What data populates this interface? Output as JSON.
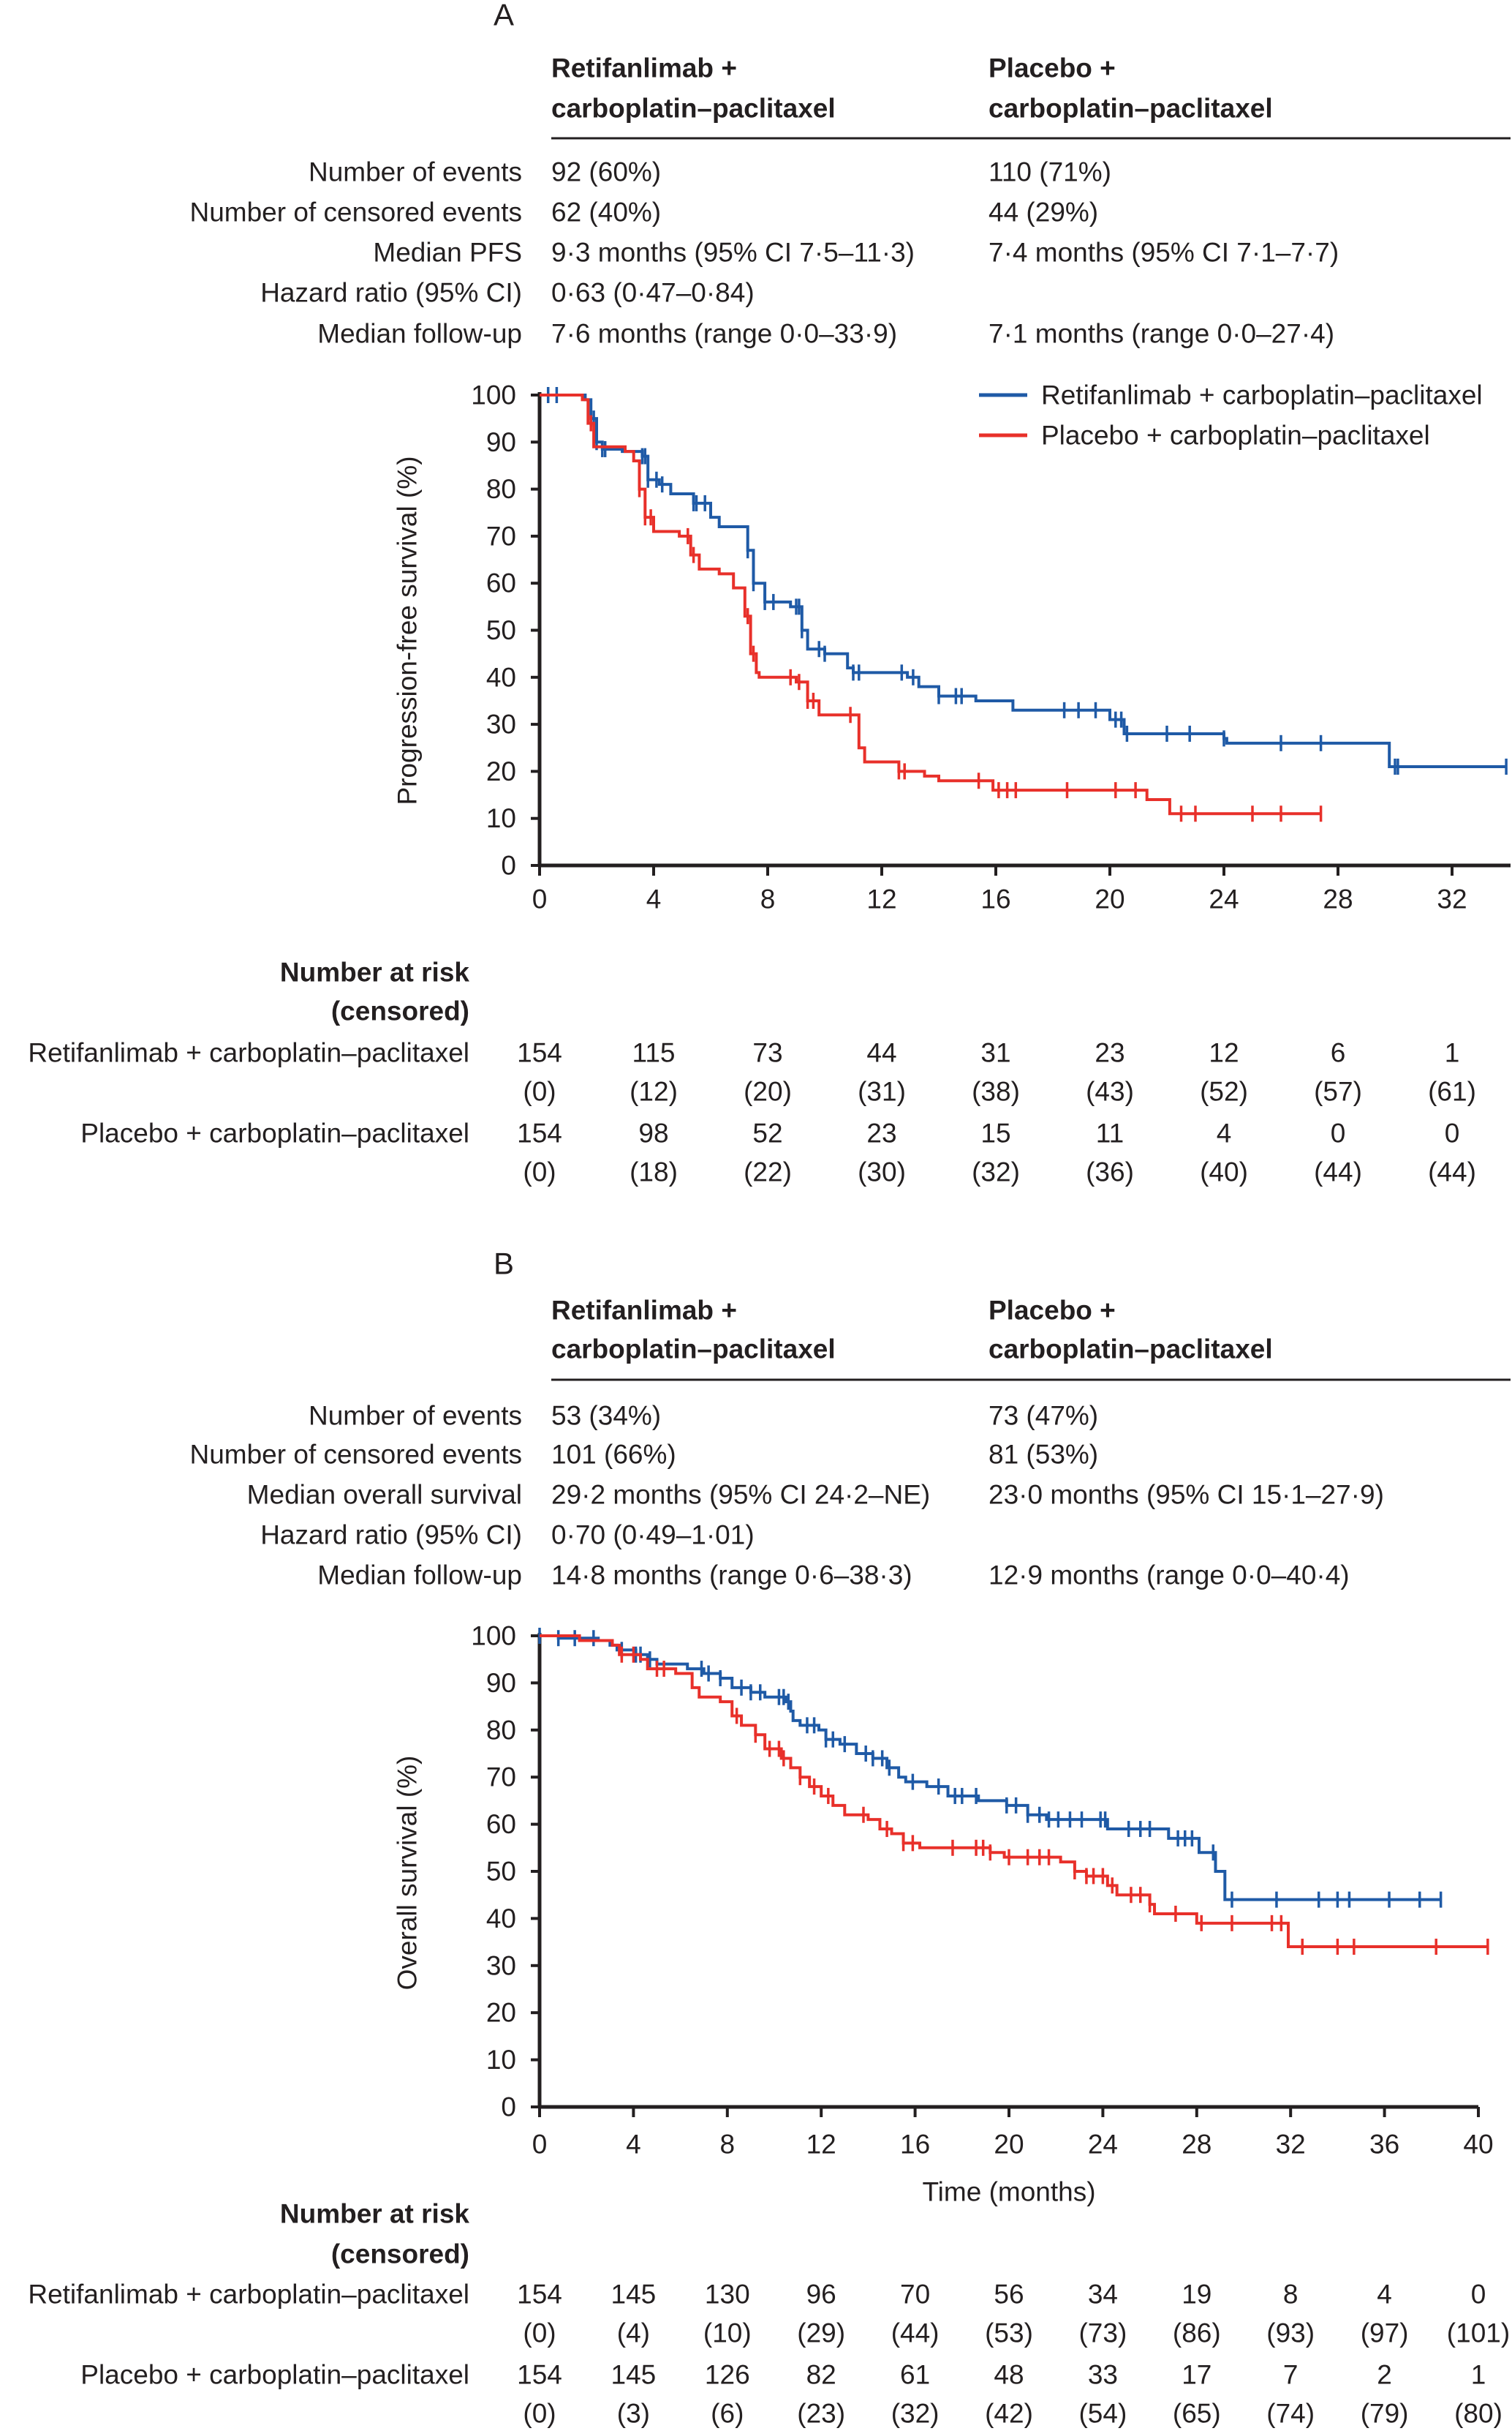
{
  "panels": [
    {
      "letter": "A",
      "header_lines": [
        [
          "Retifanlimab +",
          "carboplatin–paclitaxel"
        ],
        [
          "Placebo +",
          "carboplatin–paclitaxel"
        ]
      ],
      "stats": [
        {
          "label": "Number of events",
          "arm1": "92 (60%)",
          "arm2": "110 (71%)"
        },
        {
          "label": "Number of censored events",
          "arm1": "62 (40%)",
          "arm2": " 44 (29%)"
        },
        {
          "label": "Median PFS",
          "arm1": "9·3 months (95% CI 7·5–11·3)",
          "arm2": "7·4 months (95% CI 7·1–7·7)"
        },
        {
          "label": "Hazard ratio (95% CI)",
          "arm1": "0·63 (0·47–0·84)",
          "arm2": ""
        },
        {
          "label": "Median follow-up",
          "arm1": "7·6 months (range 0·0–33·9)",
          "arm2": "7·1 months (range 0·0–27·4)"
        }
      ],
      "risk": {
        "title": [
          "Number at risk",
          "(censored)"
        ],
        "times": [
          0,
          4,
          8,
          12,
          16,
          20,
          24,
          28,
          32
        ],
        "rows": [
          {
            "label": "Retifanlimab + carboplatin–paclitaxel",
            "at_risk": [
              "154",
              "115",
              "73",
              "44",
              "31",
              "23",
              "12",
              "6",
              "1"
            ],
            "censored": [
              "(0)",
              "(12)",
              "(20)",
              "(31)",
              "(38)",
              "(43)",
              "(52)",
              "(57)",
              "(61)"
            ]
          },
          {
            "label": "Placebo + carboplatin–paclitaxel",
            "at_risk": [
              "154",
              "98",
              "52",
              "23",
              "15",
              "11",
              "4",
              "0",
              "0"
            ],
            "censored": [
              "(0)",
              "(18)",
              "(22)",
              "(30)",
              "(32)",
              "(36)",
              "(40)",
              "(44)",
              "(44)"
            ]
          }
        ]
      }
    },
    {
      "letter": "B",
      "header_lines": [
        [
          "Retifanlimab +",
          "carboplatin–paclitaxel"
        ],
        [
          "Placebo +",
          "carboplatin–paclitaxel"
        ]
      ],
      "stats": [
        {
          "label": "Number of events",
          "arm1": " 53 (34%)",
          "arm2": "73 (47%)"
        },
        {
          "label": "Number of censored events",
          "arm1": "101 (66%)",
          "arm2": "81 (53%)"
        },
        {
          "label": "Median overall survival",
          "arm1": "29·2 months (95% CI 24·2–NE)",
          "arm2": "23·0 months (95% CI 15·1–27·9)"
        },
        {
          "label": "Hazard ratio (95% CI)",
          "arm1": " 0·70 (0·49–1·01)",
          "arm2": ""
        },
        {
          "label": "Median follow-up",
          "arm1": "14·8 months (range 0·6–38·3)",
          "arm2": "12·9 months (range 0·0–40·4)"
        }
      ],
      "risk": {
        "title": [
          "Number at risk",
          "(censored)"
        ],
        "times": [
          0,
          4,
          8,
          12,
          16,
          20,
          24,
          28,
          32,
          36,
          40
        ],
        "rows": [
          {
            "label": "Retifanlimab + carboplatin–paclitaxel",
            "at_risk": [
              "154",
              "145",
              "130",
              "96",
              "70",
              "56",
              "34",
              "19",
              "8",
              "4",
              "0"
            ],
            "censored": [
              "(0)",
              "(4)",
              "(10)",
              "(29)",
              "(44)",
              "(53)",
              "(73)",
              "(86)",
              "(93)",
              "(97)",
              "(101)"
            ]
          },
          {
            "label": "Placebo + carboplatin–paclitaxel",
            "at_risk": [
              "154",
              "145",
              "126",
              "82",
              "61",
              "48",
              "33",
              "17",
              "7",
              "2",
              "1"
            ],
            "censored": [
              "(0)",
              "(3)",
              "(6)",
              "(23)",
              "(32)",
              "(42)",
              "(54)",
              "(65)",
              "(74)",
              "(79)",
              "(80)"
            ]
          }
        ]
      }
    }
  ],
  "chart_data": [
    {
      "type": "line",
      "ylabel": "Progression-free survival (%)",
      "xlabel": "",
      "xlim": [
        0,
        34
      ],
      "ylim": [
        0,
        100
      ],
      "xticks": [
        0,
        4,
        8,
        12,
        16,
        20,
        24,
        28,
        32
      ],
      "yticks": [
        0,
        10,
        20,
        30,
        40,
        50,
        60,
        70,
        80,
        90,
        100
      ],
      "legend": "top-right",
      "series": [
        {
          "name": "Retifanlimab + carboplatin–paclitaxel",
          "color": "#1f5aa6",
          "steps": [
            [
              0,
              100
            ],
            [
              1.6,
              99
            ],
            [
              1.8,
              95
            ],
            [
              2.0,
              90
            ],
            [
              2.2,
              88.5
            ],
            [
              2.9,
              88
            ],
            [
              3.6,
              87
            ],
            [
              3.8,
              82
            ],
            [
              4.2,
              81
            ],
            [
              4.6,
              79
            ],
            [
              5.4,
              77
            ],
            [
              6.0,
              74
            ],
            [
              6.3,
              72
            ],
            [
              7.1,
              72
            ],
            [
              7.3,
              67
            ],
            [
              7.5,
              60
            ],
            [
              7.9,
              56
            ],
            [
              8.8,
              55
            ],
            [
              9.2,
              50
            ],
            [
              9.4,
              46
            ],
            [
              10.0,
              45
            ],
            [
              10.8,
              42
            ],
            [
              11.0,
              41
            ],
            [
              12.9,
              40
            ],
            [
              13.3,
              38
            ],
            [
              14.0,
              36
            ],
            [
              15.3,
              35
            ],
            [
              16.6,
              33
            ],
            [
              20.0,
              31
            ],
            [
              20.5,
              28
            ],
            [
              24.0,
              27
            ],
            [
              24.1,
              26
            ],
            [
              29.7,
              26
            ],
            [
              29.8,
              21
            ],
            [
              33.9,
              21
            ]
          ],
          "censored": [
            0.3,
            0.6,
            1.8,
            1.9,
            2.0,
            2.2,
            2.3,
            3.6,
            3.7,
            3.8,
            4.1,
            4.3,
            5.4,
            5.5,
            5.8,
            7.3,
            7.5,
            7.9,
            8.2,
            9.0,
            9.1,
            9.2,
            9.8,
            10.0,
            11.0,
            11.2,
            12.7,
            13.1,
            14.0,
            14.6,
            14.8,
            18.4,
            18.9,
            19.5,
            20.2,
            20.4,
            20.6,
            22.0,
            22.8,
            24.0,
            26.0,
            27.4,
            30.0,
            30.1,
            33.9
          ]
        },
        {
          "name": "Placebo + carboplatin–paclitaxel",
          "color": "#e8302a",
          "steps": [
            [
              0,
              100
            ],
            [
              1.5,
              99
            ],
            [
              1.7,
              94
            ],
            [
              1.9,
              89
            ],
            [
              3.0,
              88
            ],
            [
              3.3,
              86
            ],
            [
              3.5,
              80
            ],
            [
              3.7,
              74
            ],
            [
              4.0,
              71
            ],
            [
              4.9,
              70
            ],
            [
              5.3,
              66
            ],
            [
              5.6,
              63
            ],
            [
              6.3,
              62
            ],
            [
              6.8,
              59
            ],
            [
              7.2,
              53
            ],
            [
              7.4,
              45
            ],
            [
              7.6,
              41
            ],
            [
              7.7,
              40
            ],
            [
              9.0,
              39
            ],
            [
              9.4,
              35
            ],
            [
              9.8,
              32
            ],
            [
              10.9,
              32
            ],
            [
              11.2,
              25
            ],
            [
              11.4,
              22
            ],
            [
              12.6,
              20
            ],
            [
              13.5,
              19
            ],
            [
              14.0,
              18
            ],
            [
              15.9,
              16
            ],
            [
              20.2,
              16
            ],
            [
              21.3,
              14
            ],
            [
              22.1,
              11
            ],
            [
              27.4,
              11
            ]
          ],
          "censored": [
            1.8,
            3.5,
            3.7,
            3.9,
            5.2,
            5.4,
            7.3,
            7.5,
            8.8,
            9.1,
            9.4,
            9.6,
            10.9,
            12.6,
            12.8,
            15.4,
            16.1,
            16.4,
            16.7,
            18.5,
            20.2,
            20.9,
            22.5,
            23.0,
            25.0,
            26.0,
            27.4
          ]
        }
      ]
    },
    {
      "type": "line",
      "ylabel": "Overall survival (%)",
      "xlabel": "Time (months)",
      "xlim": [
        0,
        40
      ],
      "ylim": [
        0,
        100
      ],
      "xticks": [
        0,
        4,
        8,
        12,
        16,
        20,
        24,
        28,
        32,
        36,
        40
      ],
      "yticks": [
        0,
        10,
        20,
        30,
        40,
        50,
        60,
        70,
        80,
        90,
        100
      ],
      "series": [
        {
          "name": "Retifanlimab + carboplatin–paclitaxel",
          "color": "#1f5aa6",
          "steps": [
            [
              0,
              100
            ],
            [
              0.8,
              99.5
            ],
            [
              2.5,
              99
            ],
            [
              3.0,
              98
            ],
            [
              3.3,
              97
            ],
            [
              4.1,
              96
            ],
            [
              4.6,
              95
            ],
            [
              5.0,
              94
            ],
            [
              6.3,
              93
            ],
            [
              7.0,
              92
            ],
            [
              7.7,
              91
            ],
            [
              8.2,
              89
            ],
            [
              9.0,
              88
            ],
            [
              9.6,
              87
            ],
            [
              10.5,
              86
            ],
            [
              10.7,
              84
            ],
            [
              10.8,
              82
            ],
            [
              11.1,
              81
            ],
            [
              11.9,
              80
            ],
            [
              12.2,
              78
            ],
            [
              12.8,
              77
            ],
            [
              13.5,
              75
            ],
            [
              14.2,
              74
            ],
            [
              14.8,
              72
            ],
            [
              15.3,
              70
            ],
            [
              15.6,
              69
            ],
            [
              16.5,
              68
            ],
            [
              17.4,
              66
            ],
            [
              18.7,
              65
            ],
            [
              19.9,
              64
            ],
            [
              20.8,
              62
            ],
            [
              21.6,
              61
            ],
            [
              24.2,
              59
            ],
            [
              26.8,
              57
            ],
            [
              28.1,
              54
            ],
            [
              28.8,
              50
            ],
            [
              29.2,
              44
            ],
            [
              38.4,
              44
            ]
          ],
          "censored": [
            0.0,
            0.8,
            1.5,
            2.3,
            3.5,
            4.1,
            4.3,
            4.7,
            6.9,
            7.2,
            7.7,
            8.6,
            9.0,
            9.4,
            10.2,
            10.4,
            10.6,
            11.4,
            11.7,
            12.2,
            12.5,
            13.0,
            13.9,
            14.2,
            14.6,
            14.9,
            15.9,
            17.0,
            17.7,
            18.0,
            18.6,
            19.9,
            20.3,
            20.8,
            21.3,
            21.7,
            22.1,
            22.6,
            23.1,
            23.9,
            24.1,
            25.1,
            25.6,
            26.0,
            27.2,
            27.5,
            27.8,
            28.7,
            29.5,
            31.4,
            33.2,
            34.0,
            34.5,
            36.2,
            37.5,
            38.4
          ]
        },
        {
          "name": "Placebo + carboplatin–paclitaxel",
          "color": "#e8302a",
          "steps": [
            [
              0,
              100
            ],
            [
              1.7,
              99
            ],
            [
              3.1,
              98
            ],
            [
              3.4,
              96
            ],
            [
              4.3,
              95
            ],
            [
              4.6,
              93
            ],
            [
              5.8,
              92
            ],
            [
              6.5,
              89
            ],
            [
              6.8,
              87
            ],
            [
              7.7,
              86
            ],
            [
              8.2,
              83
            ],
            [
              8.6,
              81
            ],
            [
              9.2,
              79
            ],
            [
              9.6,
              76
            ],
            [
              10.3,
              74
            ],
            [
              10.7,
              72
            ],
            [
              11.1,
              70
            ],
            [
              11.5,
              68
            ],
            [
              12.0,
              66
            ],
            [
              12.5,
              64
            ],
            [
              13.0,
              62
            ],
            [
              14.0,
              61
            ],
            [
              14.5,
              59
            ],
            [
              15.0,
              58
            ],
            [
              15.5,
              56
            ],
            [
              16.2,
              55
            ],
            [
              19.2,
              54
            ],
            [
              19.8,
              53
            ],
            [
              22.2,
              52
            ],
            [
              22.8,
              50
            ],
            [
              23.3,
              49
            ],
            [
              24.2,
              47
            ],
            [
              24.6,
              45
            ],
            [
              26.0,
              43
            ],
            [
              26.2,
              41
            ],
            [
              28.0,
              39
            ],
            [
              31.8,
              39
            ],
            [
              31.9,
              34
            ],
            [
              40.4,
              34
            ]
          ],
          "censored": [
            3.5,
            4.0,
            5.0,
            5.3,
            8.4,
            9.2,
            9.8,
            10.2,
            10.4,
            11.1,
            11.7,
            12.3,
            13.8,
            14.8,
            15.5,
            15.9,
            17.6,
            18.6,
            18.9,
            19.2,
            20.0,
            20.8,
            21.3,
            21.7,
            22.8,
            23.3,
            23.6,
            24.0,
            24.4,
            25.2,
            25.6,
            26.0,
            27.1,
            28.2,
            29.5,
            31.2,
            31.6,
            32.5,
            34.0,
            34.7,
            38.2,
            40.4
          ]
        }
      ]
    }
  ]
}
